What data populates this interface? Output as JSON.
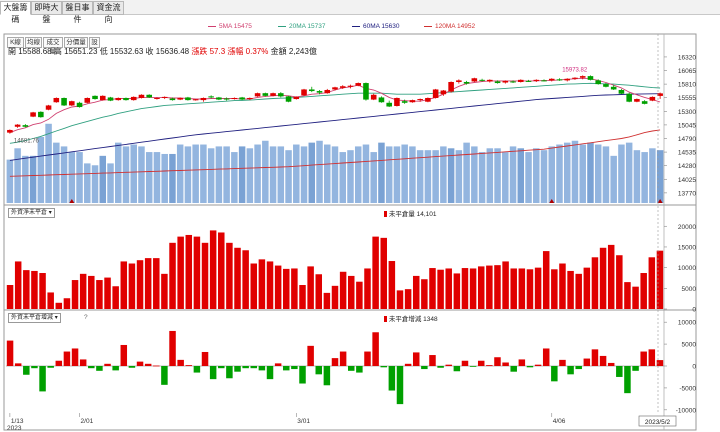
{
  "tabs": [
    "大盤籌碼",
    "即時大盤",
    "盤日事件",
    "資金流向"
  ],
  "subtabs": [
    "K線",
    "均線",
    "成交量",
    "分價量",
    "設"
  ],
  "ohlc": {
    "open_label": "開",
    "open": "15588.68",
    "high_label": "高",
    "high": "15651.23",
    "low_label": "低",
    "low": "15532.63",
    "close_label": "收",
    "close": "15636.48",
    "change_label": "漲跌",
    "change": "57.3",
    "pct_label": "漲幅",
    "pct": "0.37%",
    "amount_label": "金額",
    "amount": "2,243億"
  },
  "ma_legend": [
    {
      "label": "5MA 15475",
      "color": "#d04070"
    },
    {
      "label": "20MA 15737",
      "color": "#30a080"
    },
    {
      "label": "60MA 15630",
      "color": "#202080"
    },
    {
      "label": "120MA 14952",
      "color": "#d03030"
    }
  ],
  "annotations": {
    "high_label": "15973.82",
    "low_label": "14681.76"
  },
  "panel2": {
    "dropdown": "外資淨未平倉",
    "legend": "未平倉量 14,101"
  },
  "panel3": {
    "dropdown": "外資未平倉增減",
    "question": "?",
    "legend": "未平倉增減 1348"
  },
  "x_labels": [
    {
      "label": "1/13",
      "idx": 0
    },
    {
      "label": "2/01",
      "idx": 9
    },
    {
      "label": "3/01",
      "idx": 37
    },
    {
      "label": "4/06",
      "idx": 70
    }
  ],
  "x_year": "2023",
  "cursor_label": "2023/5/2",
  "colors": {
    "up": "#e00000",
    "down": "#00a000",
    "volume": "#93b5df",
    "volume_dark": "#7aa2d4",
    "oi_bar": "#e00000"
  },
  "chart_data": [
    {
      "type": "candlestick",
      "title": "大盤K線",
      "ylim": [
        13580,
        16450
      ],
      "y_ticks": [
        16320,
        16065,
        15810,
        15555,
        15300,
        15045,
        14790,
        14535,
        14280,
        14025,
        13770
      ],
      "ohlc": [
        [
          14900,
          14960,
          14880,
          14950
        ],
        [
          15010,
          15060,
          14990,
          15050
        ],
        [
          15040,
          15060,
          15000,
          15010
        ],
        [
          15200,
          15290,
          15190,
          15280
        ],
        [
          15290,
          15300,
          15180,
          15190
        ],
        [
          15330,
          15420,
          15320,
          15410
        ],
        [
          15470,
          15560,
          15460,
          15550
        ],
        [
          15550,
          15560,
          15400,
          15410
        ],
        [
          15410,
          15500,
          15400,
          15490
        ],
        [
          15460,
          15480,
          15370,
          15380
        ],
        [
          15460,
          15560,
          15450,
          15550
        ],
        [
          15590,
          15600,
          15520,
          15530
        ],
        [
          15510,
          15600,
          15500,
          15590
        ],
        [
          15560,
          15570,
          15490,
          15500
        ],
        [
          15510,
          15560,
          15500,
          15550
        ],
        [
          15550,
          15560,
          15500,
          15510
        ],
        [
          15510,
          15580,
          15500,
          15570
        ],
        [
          15550,
          15620,
          15540,
          15610
        ],
        [
          15610,
          15620,
          15550,
          15560
        ],
        [
          15540,
          15560,
          15520,
          15550
        ],
        [
          15550,
          15580,
          15530,
          15570
        ],
        [
          15540,
          15560,
          15500,
          15510
        ],
        [
          15520,
          15560,
          15510,
          15550
        ],
        [
          15560,
          15570,
          15500,
          15510
        ],
        [
          15520,
          15530,
          15500,
          15525
        ],
        [
          15510,
          15560,
          15480,
          15550
        ],
        [
          15580,
          15600,
          15540,
          15560
        ],
        [
          15560,
          15570,
          15510,
          15520
        ],
        [
          15540,
          15560,
          15500,
          15520
        ],
        [
          15530,
          15560,
          15520,
          15550
        ],
        [
          15560,
          15570,
          15510,
          15520
        ],
        [
          15530,
          15560,
          15510,
          15550
        ],
        [
          15580,
          15650,
          15570,
          15640
        ],
        [
          15640,
          15650,
          15580,
          15590
        ],
        [
          15590,
          15650,
          15580,
          15640
        ],
        [
          15640,
          15660,
          15560,
          15580
        ],
        [
          15580,
          15590,
          15470,
          15480
        ],
        [
          15530,
          15580,
          15520,
          15570
        ],
        [
          15600,
          15720,
          15590,
          15710
        ],
        [
          15710,
          15760,
          15660,
          15680
        ],
        [
          15680,
          15700,
          15620,
          15650
        ],
        [
          15640,
          15720,
          15630,
          15700
        ],
        [
          15710,
          15760,
          15690,
          15750
        ],
        [
          15740,
          15790,
          15720,
          15770
        ],
        [
          15760,
          15800,
          15730,
          15780
        ],
        [
          15780,
          15840,
          15770,
          15830
        ],
        [
          15830,
          15840,
          15500,
          15520
        ],
        [
          15520,
          15630,
          15510,
          15610
        ],
        [
          15560,
          15580,
          15460,
          15470
        ],
        [
          15460,
          15500,
          15380,
          15390
        ],
        [
          15400,
          15560,
          15390,
          15550
        ],
        [
          15490,
          15520,
          15440,
          15460
        ],
        [
          15470,
          15520,
          15460,
          15510
        ],
        [
          15510,
          15540,
          15480,
          15530
        ],
        [
          15480,
          15560,
          15470,
          15550
        ],
        [
          15550,
          15720,
          15540,
          15710
        ],
        [
          15620,
          15700,
          15590,
          15690
        ],
        [
          15670,
          15860,
          15650,
          15850
        ],
        [
          15850,
          15900,
          15820,
          15880
        ],
        [
          15850,
          15870,
          15800,
          15820
        ],
        [
          15860,
          15930,
          15850,
          15920
        ],
        [
          15890,
          15910,
          15860,
          15880
        ],
        [
          15860,
          15900,
          15840,
          15890
        ],
        [
          15860,
          15880,
          15820,
          15830
        ],
        [
          15840,
          15880,
          15820,
          15870
        ],
        [
          15860,
          15880,
          15830,
          15850
        ],
        [
          15850,
          15900,
          15840,
          15890
        ],
        [
          15870,
          15890,
          15850,
          15860
        ],
        [
          15870,
          15900,
          15850,
          15890
        ],
        [
          15880,
          15900,
          15860,
          15870
        ],
        [
          15880,
          15920,
          15860,
          15910
        ],
        [
          15900,
          15920,
          15870,
          15880
        ],
        [
          15880,
          15920,
          15860,
          15910
        ],
        [
          15910,
          15940,
          15890,
          15930
        ],
        [
          15930,
          15974,
          15900,
          15960
        ],
        [
          15960,
          15974,
          15880,
          15890
        ],
        [
          15880,
          15900,
          15800,
          15810
        ],
        [
          15810,
          15830,
          15750,
          15760
        ],
        [
          15760,
          15790,
          15700,
          15710
        ],
        [
          15700,
          15720,
          15620,
          15630
        ],
        [
          15630,
          15650,
          15470,
          15480
        ],
        [
          15480,
          15540,
          15470,
          15530
        ],
        [
          15490,
          15510,
          15430,
          15440
        ],
        [
          15500,
          15580,
          15490,
          15570
        ],
        [
          15588.68,
          15651.23,
          15532.63,
          15636.48
        ]
      ],
      "ma5": [
        14900,
        14955,
        14990,
        15050,
        15080,
        15150,
        15260,
        15330,
        15380,
        15400,
        15440,
        15470,
        15510,
        15520,
        15540,
        15540,
        15540,
        15560,
        15560,
        15560,
        15560,
        15550,
        15550,
        15540,
        15530,
        15530,
        15540,
        15540,
        15540,
        15540,
        15530,
        15530,
        15560,
        15580,
        15590,
        15600,
        15590,
        15570,
        15590,
        15620,
        15630,
        15650,
        15700,
        15740,
        15760,
        15790,
        15730,
        15700,
        15640,
        15560,
        15510,
        15500,
        15490,
        15490,
        15520,
        15560,
        15620,
        15700,
        15770,
        15820,
        15840,
        15860,
        15870,
        15870,
        15870,
        15870,
        15870,
        15870,
        15870,
        15880,
        15880,
        15890,
        15900,
        15910,
        15920,
        15910,
        15880,
        15840,
        15790,
        15740,
        15660,
        15610,
        15560,
        15520,
        15475
      ],
      "ma20": [
        14700,
        14720,
        14750,
        14790,
        14830,
        14880,
        14930,
        14980,
        15030,
        15070,
        15110,
        15150,
        15190,
        15220,
        15260,
        15290,
        15320,
        15350,
        15370,
        15390,
        15410,
        15420,
        15430,
        15440,
        15450,
        15460,
        15470,
        15480,
        15490,
        15500,
        15505,
        15510,
        15520,
        15530,
        15540,
        15545,
        15550,
        15560,
        15570,
        15580,
        15590,
        15600,
        15610,
        15620,
        15630,
        15640,
        15640,
        15640,
        15640,
        15630,
        15620,
        15620,
        15620,
        15620,
        15630,
        15640,
        15650,
        15660,
        15670,
        15680,
        15690,
        15700,
        15710,
        15720,
        15730,
        15740,
        15750,
        15760,
        15770,
        15780,
        15790,
        15800,
        15810,
        15815,
        15820,
        15825,
        15820,
        15815,
        15810,
        15800,
        15790,
        15775,
        15760,
        15745,
        15737
      ],
      "ma60": [
        14380,
        14400,
        14420,
        14440,
        14460,
        14480,
        14500,
        14520,
        14540,
        14560,
        14580,
        14600,
        14620,
        14640,
        14660,
        14680,
        14700,
        14720,
        14740,
        14760,
        14780,
        14800,
        14820,
        14840,
        14860,
        14875,
        14890,
        14905,
        14920,
        14935,
        14950,
        14965,
        14980,
        14995,
        15010,
        15025,
        15040,
        15055,
        15070,
        15085,
        15100,
        15115,
        15130,
        15145,
        15160,
        15175,
        15190,
        15205,
        15220,
        15235,
        15250,
        15265,
        15280,
        15295,
        15310,
        15325,
        15340,
        15355,
        15370,
        15385,
        15400,
        15415,
        15430,
        15445,
        15460,
        15475,
        15490,
        15505,
        15520,
        15530,
        15540,
        15550,
        15560,
        15570,
        15580,
        15590,
        15600,
        15605,
        15610,
        15615,
        15620,
        15623,
        15626,
        15628,
        15630
      ],
      "ma120": [
        14080,
        14085,
        14090,
        14095,
        14100,
        14105,
        14110,
        14115,
        14120,
        14125,
        14130,
        14135,
        14140,
        14145,
        14150,
        14155,
        14160,
        14165,
        14170,
        14175,
        14180,
        14185,
        14190,
        14195,
        14200,
        14205,
        14210,
        14215,
        14220,
        14225,
        14230,
        14235,
        14240,
        14245,
        14250,
        14255,
        14260,
        14270,
        14280,
        14290,
        14300,
        14310,
        14320,
        14330,
        14340,
        14350,
        14360,
        14370,
        14380,
        14390,
        14400,
        14410,
        14420,
        14430,
        14440,
        14450,
        14460,
        14470,
        14480,
        14490,
        14500,
        14510,
        14520,
        14530,
        14540,
        14550,
        14560,
        14570,
        14580,
        14590,
        14610,
        14630,
        14650,
        14670,
        14690,
        14710,
        14730,
        14750,
        14770,
        14790,
        14820,
        14860,
        14900,
        14930,
        14952
      ],
      "volume": [
        2300,
        2900,
        2500,
        2500,
        3500,
        4200,
        3200,
        3000,
        2700,
        2700,
        2100,
        2000,
        2500,
        2100,
        3200,
        3000,
        3100,
        3000,
        2700,
        2700,
        2600,
        2600,
        3100,
        3000,
        3100,
        3100,
        2900,
        3000,
        3000,
        2700,
        3000,
        2900,
        3100,
        3300,
        3000,
        3000,
        2800,
        3100,
        3000,
        3200,
        3300,
        3100,
        3000,
        2700,
        2800,
        3000,
        3100,
        2700,
        3200,
        3000,
        3000,
        3100,
        3000,
        2800,
        2800,
        2800,
        3000,
        2900,
        2800,
        3200,
        3000,
        2700,
        2900,
        2900,
        2700,
        3000,
        2900,
        2700,
        2900,
        2800,
        3000,
        3100,
        3200,
        3300,
        3100,
        3200,
        3100,
        3000,
        2500,
        3100,
        3200,
        2800,
        2700,
        2900,
        2800
      ],
      "vol_max": 4400
    },
    {
      "type": "bar",
      "title": "外資淨未平倉",
      "ylim": [
        0,
        22000
      ],
      "y_ticks": [
        20000,
        15000,
        10000,
        5000,
        0
      ],
      "values": [
        5800,
        11500,
        9400,
        9200,
        8700,
        4000,
        1500,
        2600,
        7000,
        8500,
        8000,
        7000,
        7600,
        5500,
        11500,
        11000,
        11800,
        12300,
        12300,
        8500,
        16000,
        17500,
        17900,
        17500,
        16000,
        19000,
        18500,
        16000,
        14800,
        14200,
        11000,
        12000,
        11500,
        10500,
        9700,
        9800,
        5800,
        10300,
        8400,
        3900,
        5600,
        9000,
        8000,
        6600,
        9800,
        17500,
        17200,
        11600,
        4500,
        4800,
        8000,
        7200,
        9900,
        9500,
        9800,
        8600,
        9900,
        9800,
        10300,
        10500,
        10600,
        11500,
        9800,
        9800,
        9600,
        10000,
        14000,
        9600,
        11000,
        9200,
        8500,
        10000,
        12500,
        14800,
        15500,
        13000,
        6500,
        5400,
        8700,
        12500,
        14101
      ]
    },
    {
      "type": "bar",
      "title": "外資未平倉增減",
      "ylim": [
        -10500,
        10500
      ],
      "y_ticks": [
        10000,
        5000,
        0,
        -5000,
        -10000
      ],
      "values": [
        5800,
        600,
        -2000,
        -500,
        -5800,
        -400,
        1200,
        3300,
        4000,
        1500,
        -500,
        -1100,
        500,
        -1000,
        4800,
        -400,
        1000,
        500,
        100,
        -4300,
        8000,
        1400,
        200,
        -1500,
        3200,
        -3000,
        -500,
        -2800,
        -1300,
        -500,
        -500,
        -1000,
        -3000,
        600,
        -1000,
        -700,
        -4000,
        4600,
        -1900,
        -4400,
        1800,
        3300,
        -1100,
        -1500,
        3300,
        7700,
        -300,
        -5600,
        -8700,
        500,
        3100,
        -700,
        2500,
        -400,
        300,
        -1200,
        1200,
        -100,
        1200,
        200,
        2000,
        800,
        -1300,
        1500,
        -300,
        300,
        4000,
        -3500,
        1400,
        -1900,
        -700,
        1700,
        3800,
        2300,
        700,
        -2500,
        -6200,
        -1100,
        3300,
        3800,
        1348
      ]
    }
  ]
}
